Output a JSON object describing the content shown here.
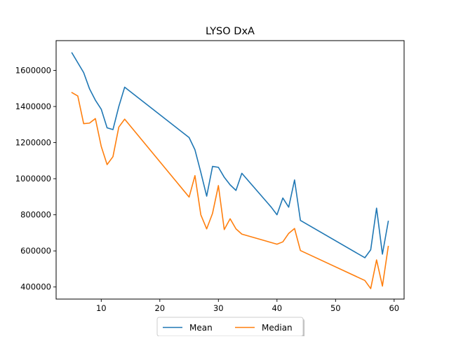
{
  "chart_data": {
    "type": "line",
    "title": "LYSO DxA",
    "xlabel": "",
    "ylabel": "",
    "xlim": [
      2.3,
      61.7
    ],
    "ylim": [
      333000,
      1765000
    ],
    "x_ticks": [
      10,
      20,
      30,
      40,
      50,
      60
    ],
    "y_ticks": [
      400000,
      600000,
      800000,
      1000000,
      1200000,
      1400000,
      1600000
    ],
    "grid": false,
    "legend_position": "bottom-center",
    "series": [
      {
        "name": "Mean",
        "color": "#1f77b4",
        "x": [
          5,
          7,
          8,
          9,
          10,
          11,
          12,
          13,
          14,
          25,
          26,
          27,
          28,
          29,
          30,
          31,
          32,
          33,
          34,
          39,
          40,
          41,
          42,
          43,
          44,
          55,
          56,
          57,
          58,
          59
        ],
        "y": [
          1697000,
          1588000,
          1498000,
          1435000,
          1385000,
          1282000,
          1272000,
          1400000,
          1507000,
          1228000,
          1160000,
          1035000,
          903000,
          1068000,
          1063000,
          1008000,
          966000,
          935000,
          1030000,
          843000,
          800000,
          893000,
          842000,
          993000,
          769000,
          562000,
          606000,
          837000,
          582000,
          764000
        ]
      },
      {
        "name": "Median",
        "color": "#ff7f0e",
        "x": [
          5,
          6,
          7,
          8,
          9,
          10,
          11,
          12,
          13,
          14,
          25,
          26,
          27,
          28,
          29,
          30,
          31,
          32,
          33,
          34,
          40,
          41,
          42,
          43,
          44,
          55,
          56,
          57,
          58,
          59
        ],
        "y": [
          1477000,
          1458000,
          1305000,
          1308000,
          1333000,
          1179000,
          1078000,
          1122000,
          1286000,
          1330000,
          898000,
          1017000,
          800000,
          722000,
          808000,
          962000,
          718000,
          778000,
          722000,
          693000,
          637000,
          650000,
          697000,
          724000,
          602000,
          436000,
          391000,
          550000,
          405000,
          625000
        ]
      }
    ]
  }
}
